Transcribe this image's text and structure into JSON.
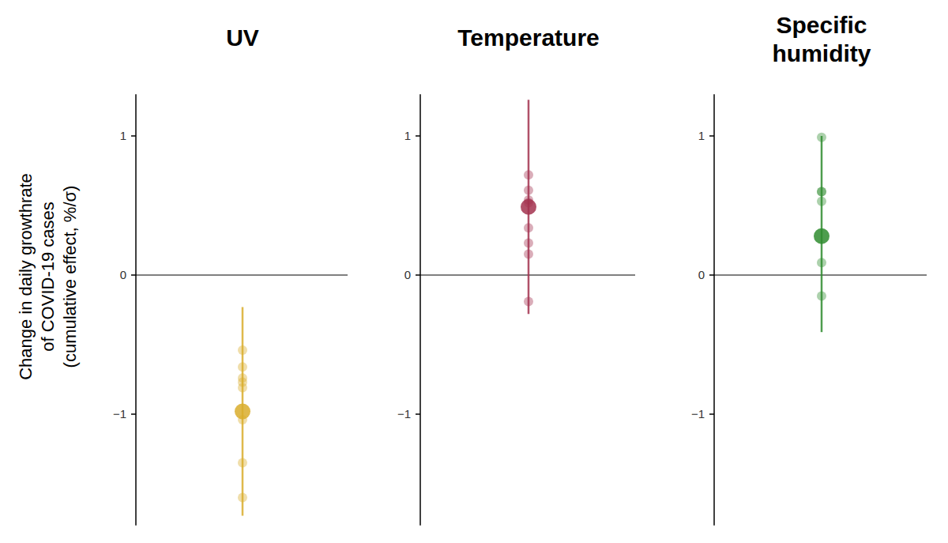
{
  "chart_data": [
    {
      "type": "scatter",
      "title": "UV",
      "ylabel": [
        "Change in daily growthrate",
        "of COVID-19 cases",
        "(cumulative effect, %/σ)"
      ],
      "ylim": [
        -1.8,
        1.3
      ],
      "yticks": [
        {
          "value": -1,
          "label": "−1"
        },
        0,
        1
      ],
      "color": "#d9ad2b",
      "estimate": -0.98,
      "ci": [
        -1.73,
        -0.23
      ],
      "values": [
        -0.54,
        -0.66,
        -0.74,
        -0.77,
        -0.81,
        -1.04,
        -1.35,
        -1.6
      ]
    },
    {
      "type": "scatter",
      "title": "Temperature",
      "ylim": [
        -1.8,
        1.3
      ],
      "yticks": [
        {
          "value": -1,
          "label": "−1"
        },
        0,
        1
      ],
      "color": "#a3334f",
      "estimate": 0.49,
      "ci": [
        -0.28,
        1.26
      ],
      "values": [
        0.72,
        0.61,
        0.54,
        0.52,
        0.34,
        0.23,
        0.15,
        -0.19
      ]
    },
    {
      "type": "scatter",
      "title": "Specific humidity",
      "ylim": [
        -1.8,
        1.3
      ],
      "yticks": [
        {
          "value": -1,
          "label": "−1"
        },
        0,
        1
      ],
      "color": "#2f8c2f",
      "estimate": 0.28,
      "ci": [
        -0.41,
        1.0
      ],
      "values": [
        0.99,
        0.6,
        0.6,
        0.53,
        0.09,
        -0.15
      ]
    }
  ]
}
